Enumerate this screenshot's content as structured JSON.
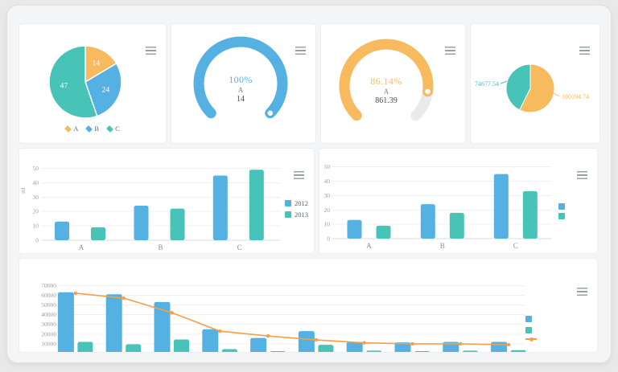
{
  "theme": {
    "blue": "#56b1e3",
    "teal": "#48c3b7",
    "orange": "#f7ba5e",
    "line_orange": "#f5a045",
    "track_gray": "#eaeaea"
  },
  "chart_data": [
    {
      "id": "pie-abc",
      "type": "pie",
      "labels": [
        "A",
        "B",
        "C"
      ],
      "values": [
        14,
        24,
        47
      ],
      "inner_labels": [
        "14",
        "24",
        "47"
      ],
      "colors": [
        "#f7ba5e",
        "#56b1e3",
        "#48c3b7"
      ],
      "legend_position": "bottom"
    },
    {
      "id": "gauge-blue",
      "type": "gauge",
      "percent": 100,
      "percent_label": "100%",
      "series_name": "A",
      "value_label": "14",
      "color": "#56b1e3",
      "sweep_deg": 270
    },
    {
      "id": "gauge-orange",
      "type": "gauge",
      "percent": 86.14,
      "percent_label": "86.14%",
      "series_name": "A",
      "value_label": "861.39",
      "color": "#f7ba5e",
      "sweep_deg": 270
    },
    {
      "id": "pie-two",
      "type": "pie",
      "slices": [
        {
          "label": "100194.74",
          "value": 100194.74,
          "color": "#f7ba5e",
          "label_side": "right"
        },
        {
          "label": "74677.54",
          "value": 74677.54,
          "color": "#48c3b7",
          "label_side": "left"
        }
      ]
    },
    {
      "id": "bar-left",
      "type": "bar",
      "categories": [
        "A",
        "B",
        "C"
      ],
      "y_axis_name": "ml",
      "y_ticks": [
        0,
        10,
        20,
        30,
        40,
        50
      ],
      "ylim": [
        0,
        50
      ],
      "series": [
        {
          "name": "2012",
          "color": "#56b1e3",
          "values": [
            13,
            24,
            45
          ]
        },
        {
          "name": "2013",
          "color": "#48c3b7",
          "values": [
            9,
            22,
            49
          ]
        }
      ],
      "legend": {
        "position": "right",
        "labels_visible": true
      }
    },
    {
      "id": "bar-right",
      "type": "bar",
      "categories": [
        "A",
        "B",
        "C"
      ],
      "y_ticks": [
        0,
        10,
        20,
        30,
        40,
        50
      ],
      "ylim": [
        0,
        50
      ],
      "series": [
        {
          "color": "#56b1e3",
          "values": [
            13,
            24,
            45
          ]
        },
        {
          "color": "#48c3b7",
          "values": [
            9,
            18,
            33
          ]
        }
      ],
      "legend": {
        "position": "right",
        "labels_visible": false
      }
    },
    {
      "id": "combo-bar-line",
      "type": "bar+line",
      "x_labels_visible": false,
      "n_categories": 10,
      "y_ticks": [
        10000,
        20000,
        30000,
        40000,
        50000,
        60000,
        70000
      ],
      "ylim": [
        0,
        70000
      ],
      "bars": [
        {
          "color": "#56b1e3",
          "values": [
            63000,
            61000,
            53000,
            25000,
            16000,
            23000,
            12000,
            11500,
            12000,
            12000
          ]
        },
        {
          "color": "#48c3b7",
          "values": [
            12000,
            9500,
            14500,
            4500,
            2500,
            9000,
            3000,
            2500,
            3000,
            3500
          ]
        }
      ],
      "line": {
        "color": "#f5a045",
        "values": [
          62000,
          57000,
          42000,
          23000,
          18000,
          14000,
          11000,
          10000,
          10000,
          9000
        ]
      },
      "legend": {
        "labels_visible": false,
        "markers": [
          "bar-blue",
          "bar-teal",
          "line-orange"
        ]
      }
    }
  ]
}
